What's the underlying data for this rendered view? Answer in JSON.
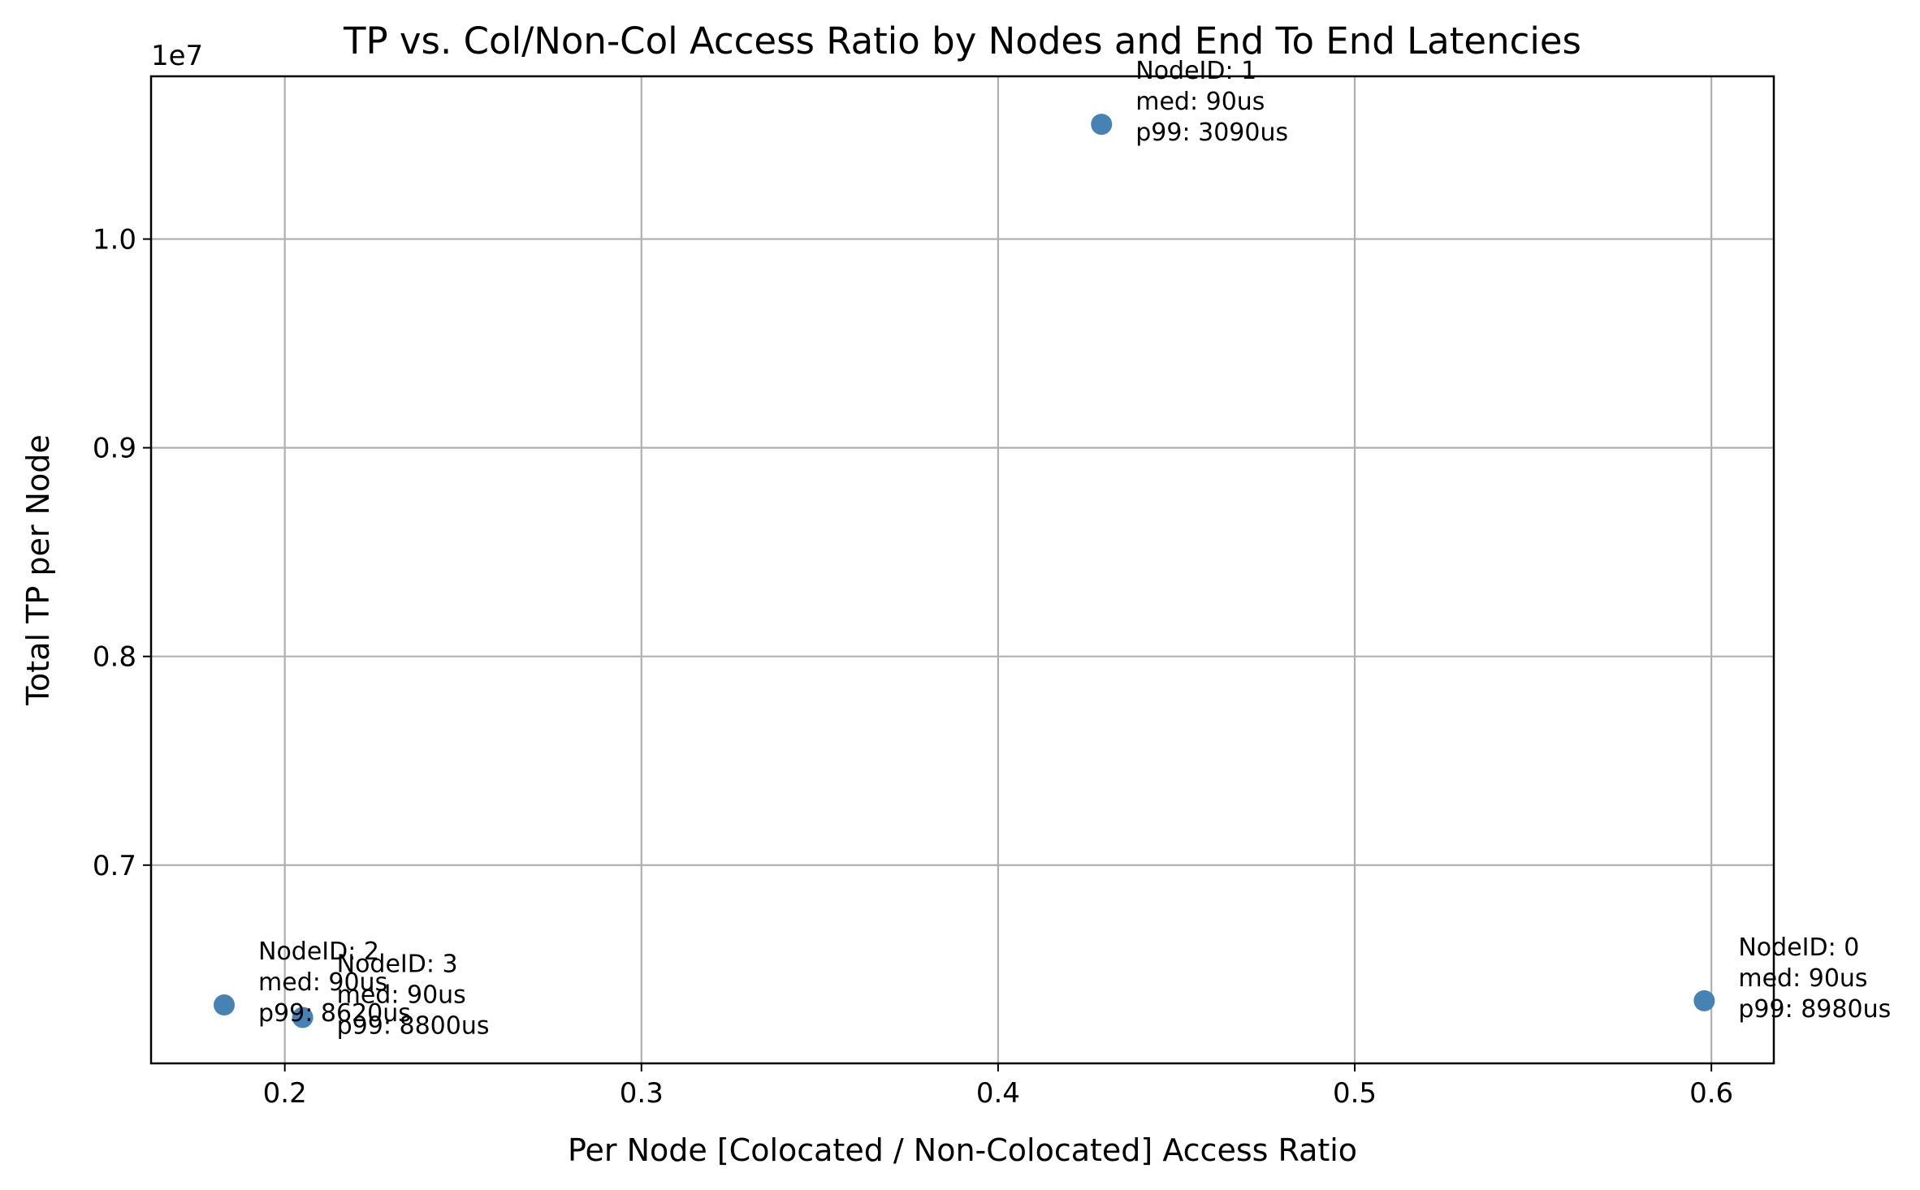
{
  "chart_data": {
    "type": "scatter",
    "title": "TP vs. Col/Non-Col Access Ratio by Nodes and End To End Latencies",
    "xlabel": "Per Node [Colocated / Non-Colocated] Access Ratio",
    "ylabel": "Total TP per Node",
    "y_offset_label": "1e7",
    "xlim": [
      0.1625,
      0.6175
    ],
    "ylim": [
      6.05,
      10.78
    ],
    "x_ticks": [
      0.2,
      0.3,
      0.4,
      0.5,
      0.6
    ],
    "x_tick_labels": [
      "0.2",
      "0.3",
      "0.4",
      "0.5",
      "0.6"
    ],
    "y_ticks": [
      0.7,
      0.8,
      0.9,
      1.0
    ],
    "y_tick_labels": [
      "0.7",
      "0.8",
      "0.9",
      "1.0"
    ],
    "grid": true,
    "marker_color": "#4682b4",
    "points": [
      {
        "x": 0.598,
        "y": 6.35,
        "annotation": [
          "NodeID: 0",
          "med: 90us",
          "p99: 8980us"
        ]
      },
      {
        "x": 0.429,
        "y": 10.55,
        "annotation": [
          "NodeID: 1",
          "med: 90us",
          "p99: 3090us"
        ]
      },
      {
        "x": 0.183,
        "y": 6.33,
        "annotation": [
          "NodeID: 2",
          "med: 90us",
          "p99: 8620us"
        ]
      },
      {
        "x": 0.205,
        "y": 6.27,
        "annotation": [
          "NodeID: 3",
          "med: 90us",
          "p99: 8800us"
        ]
      }
    ]
  }
}
